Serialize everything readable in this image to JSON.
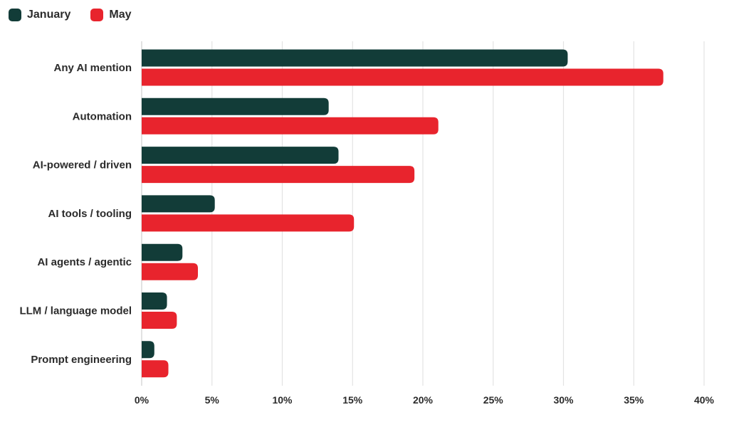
{
  "legend": {
    "items": [
      {
        "name": "January",
        "color": "#123c38"
      },
      {
        "name": "May",
        "color": "#e8242d"
      }
    ]
  },
  "chart_data": {
    "type": "bar",
    "orientation": "horizontal",
    "categories": [
      "Any AI mention",
      "Automation",
      "AI-powered / driven",
      "AI tools / tooling",
      "AI agents / agentic",
      "LLM / language model",
      "Prompt engineering"
    ],
    "series": [
      {
        "name": "January",
        "color": "#123c38",
        "values": [
          30.3,
          13.3,
          14.0,
          5.2,
          2.9,
          1.8,
          0.9
        ]
      },
      {
        "name": "May",
        "color": "#e8242d",
        "values": [
          37.1,
          21.1,
          19.4,
          15.1,
          4.0,
          2.5,
          1.9
        ]
      }
    ],
    "xlim": [
      0,
      40
    ],
    "xticks": [
      "0%",
      "5%",
      "10%",
      "15%",
      "20%",
      "25%",
      "30%",
      "35%",
      "40%"
    ],
    "grid": true,
    "legend_position": "top-left",
    "title": "",
    "xlabel": "",
    "ylabel": ""
  }
}
